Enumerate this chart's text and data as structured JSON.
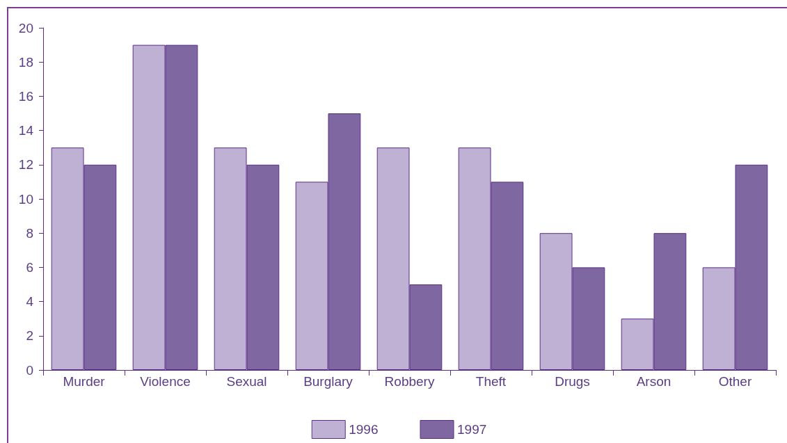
{
  "chart_data": {
    "type": "bar",
    "categories": [
      "Murder",
      "Violence",
      "Sexual",
      "Burglary",
      "Robbery",
      "Theft",
      "Drugs",
      "Arson",
      "Other"
    ],
    "series": [
      {
        "name": "1996",
        "color": "#bfb1d3",
        "values": [
          13,
          19,
          13,
          11,
          13,
          13,
          8,
          3,
          6
        ]
      },
      {
        "name": "1997",
        "color": "#7f68a2",
        "values": [
          12,
          19,
          12,
          15,
          5,
          11,
          6,
          8,
          12
        ]
      }
    ],
    "ylim": [
      0,
      20
    ],
    "yticks": [
      0,
      2,
      4,
      6,
      8,
      10,
      12,
      14,
      16,
      18,
      20
    ],
    "grid": false,
    "legend": "bottom"
  }
}
